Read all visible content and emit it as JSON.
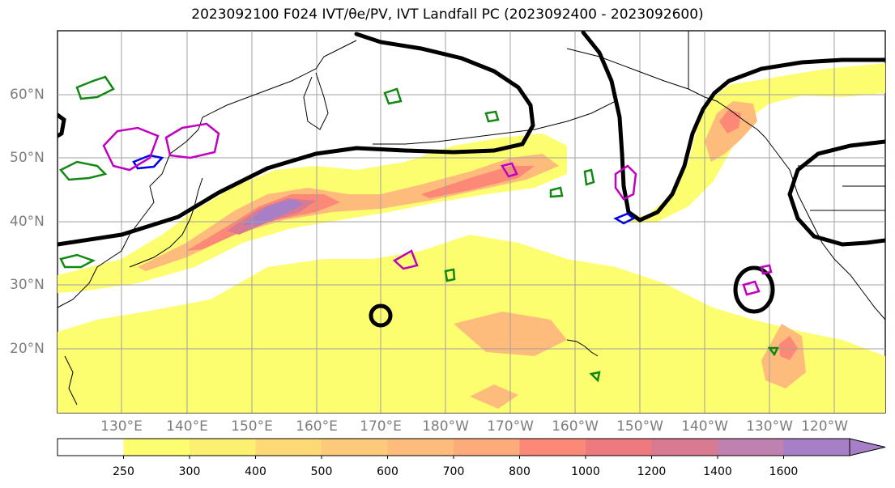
{
  "title": "2023092100 F024 IVT/θe/PV, IVT Landfall PC (2023092400 - 2023092600)",
  "lat_labels": [
    "60°N",
    "50°N",
    "40°N",
    "30°N",
    "20°N"
  ],
  "lon_labels": [
    "130°E",
    "140°E",
    "150°E",
    "160°E",
    "170°E",
    "180°W",
    "170°W",
    "160°W",
    "150°W",
    "140°W",
    "130°W",
    "120°W"
  ],
  "colorbar": {
    "ticks": [
      "250",
      "300",
      "400",
      "500",
      "600",
      "700",
      "800",
      "1000",
      "1200",
      "1400",
      "1600"
    ],
    "colors": [
      "#ffffff",
      "#fdfd70",
      "#fcf070",
      "#fdd976",
      "#fdc97a",
      "#fdbc7c",
      "#fdab7a",
      "#fc8878",
      "#ee7a80",
      "#d77a92",
      "#bf82b0",
      "#a77fc6"
    ]
  },
  "colors": {
    "ivt_low": "#fdfd70",
    "ivt_mid": "#fdbc7c",
    "ivt_high": "#fc8878",
    "ivt_max": "#a77fc6",
    "theta_e_contour": "#000000",
    "pv_green": "#118811",
    "pv_blue": "#0000ee",
    "pv_magenta": "#c000c0",
    "grid": "#a0a0a0",
    "coast": "#000000"
  }
}
